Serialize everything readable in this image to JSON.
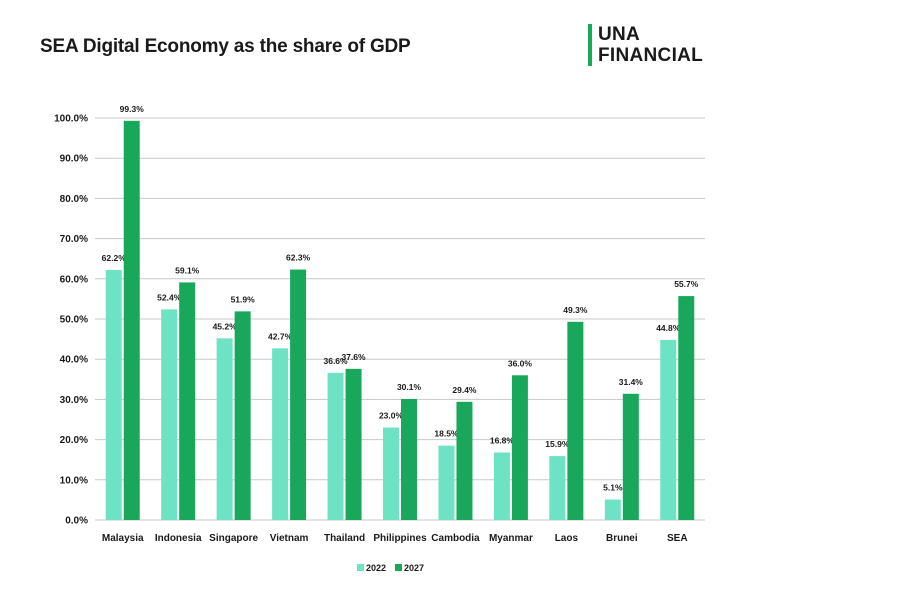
{
  "header": {
    "title": "SEA Digital Economy as the share of GDP",
    "logo_line1": "UNA",
    "logo_line2": "FINANCIAL"
  },
  "colors": {
    "series_2022": "#6ee3c4",
    "series_2027": "#19a85b",
    "grid": "#c8c8c8",
    "brand": "#18a95b"
  },
  "chart_data": {
    "type": "bar",
    "title": "SEA Digital Economy as the share of GDP",
    "categories": [
      "Malaysia",
      "Indonesia",
      "Singapore",
      "Vietnam",
      "Thailand",
      "Philippines",
      "Cambodia",
      "Myanmar",
      "Laos",
      "Brunei",
      "SEA"
    ],
    "series": [
      {
        "name": "2022",
        "values": [
          62.2,
          52.4,
          45.2,
          42.7,
          36.6,
          23.0,
          18.5,
          16.8,
          15.9,
          5.1,
          44.8
        ],
        "labels": [
          "62.2%",
          "52.4%",
          "45.2%",
          "42.7%",
          "36.6%",
          "23.0%",
          "18.5%",
          "16.8%",
          "15.9%",
          "5.1%",
          "44.8%"
        ]
      },
      {
        "name": "2027",
        "values": [
          99.3,
          59.1,
          51.9,
          62.3,
          37.6,
          30.1,
          29.4,
          36.0,
          49.3,
          31.4,
          55.7
        ],
        "labels": [
          "99.3%",
          "59.1%",
          "51.9%",
          "62.3%",
          "37.6%",
          "30.1%",
          "29.4%",
          "36.0%",
          "49.3%",
          "31.4%",
          "55.7%"
        ]
      }
    ],
    "ylim": [
      0,
      100
    ],
    "yticks": [
      "0.0%",
      "10.0%",
      "20.0%",
      "30.0%",
      "40.0%",
      "50.0%",
      "60.0%",
      "70.0%",
      "80.0%",
      "90.0%",
      "100.0%"
    ],
    "grid": true,
    "legend_position": "bottom-center"
  }
}
